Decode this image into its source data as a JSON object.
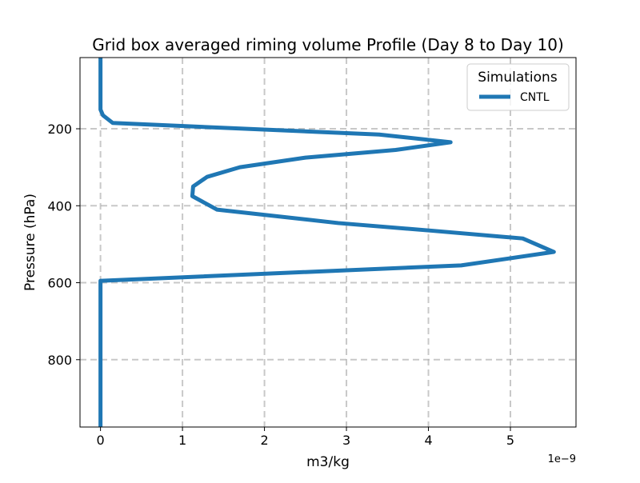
{
  "chart_data": {
    "type": "line",
    "title": "Grid box averaged riming volume Profile (Day 8 to Day 10)",
    "xlabel": "m3/kg",
    "ylabel": "Pressure (hPa)",
    "x_scale_label": "1e−9",
    "x_multiplier": 1e-09,
    "xlim": [
      -0.25,
      5.8
    ],
    "ylim": [
      975,
      15
    ],
    "y_inverted": true,
    "x_ticks": [
      0,
      1,
      2,
      3,
      4,
      5
    ],
    "x_tick_labels": [
      "0",
      "1",
      "2",
      "3",
      "4",
      "5"
    ],
    "y_ticks": [
      200,
      400,
      600,
      800
    ],
    "y_tick_labels": [
      "200",
      "400",
      "600",
      "800"
    ],
    "grid": true,
    "legend": {
      "title": "Simulations",
      "position": "top-right"
    },
    "series": [
      {
        "name": "CNTL",
        "color": "#1f77b4",
        "points": [
          {
            "x": 0.0,
            "y": 15
          },
          {
            "x": 0.0,
            "y": 50
          },
          {
            "x": 0.0,
            "y": 100
          },
          {
            "x": 0.0,
            "y": 150
          },
          {
            "x": 0.03,
            "y": 165
          },
          {
            "x": 0.15,
            "y": 185
          },
          {
            "x": 3.4,
            "y": 215
          },
          {
            "x": 4.27,
            "y": 235
          },
          {
            "x": 3.6,
            "y": 255
          },
          {
            "x": 2.5,
            "y": 275
          },
          {
            "x": 1.7,
            "y": 300
          },
          {
            "x": 1.3,
            "y": 325
          },
          {
            "x": 1.13,
            "y": 350
          },
          {
            "x": 1.12,
            "y": 375
          },
          {
            "x": 1.42,
            "y": 410
          },
          {
            "x": 2.9,
            "y": 445
          },
          {
            "x": 4.05,
            "y": 465
          },
          {
            "x": 5.15,
            "y": 485
          },
          {
            "x": 5.53,
            "y": 520
          },
          {
            "x": 4.4,
            "y": 555
          },
          {
            "x": 0.0,
            "y": 595
          },
          {
            "x": 0.0,
            "y": 650
          },
          {
            "x": 0.0,
            "y": 750
          },
          {
            "x": 0.0,
            "y": 850
          },
          {
            "x": 0.0,
            "y": 975
          }
        ]
      }
    ]
  }
}
